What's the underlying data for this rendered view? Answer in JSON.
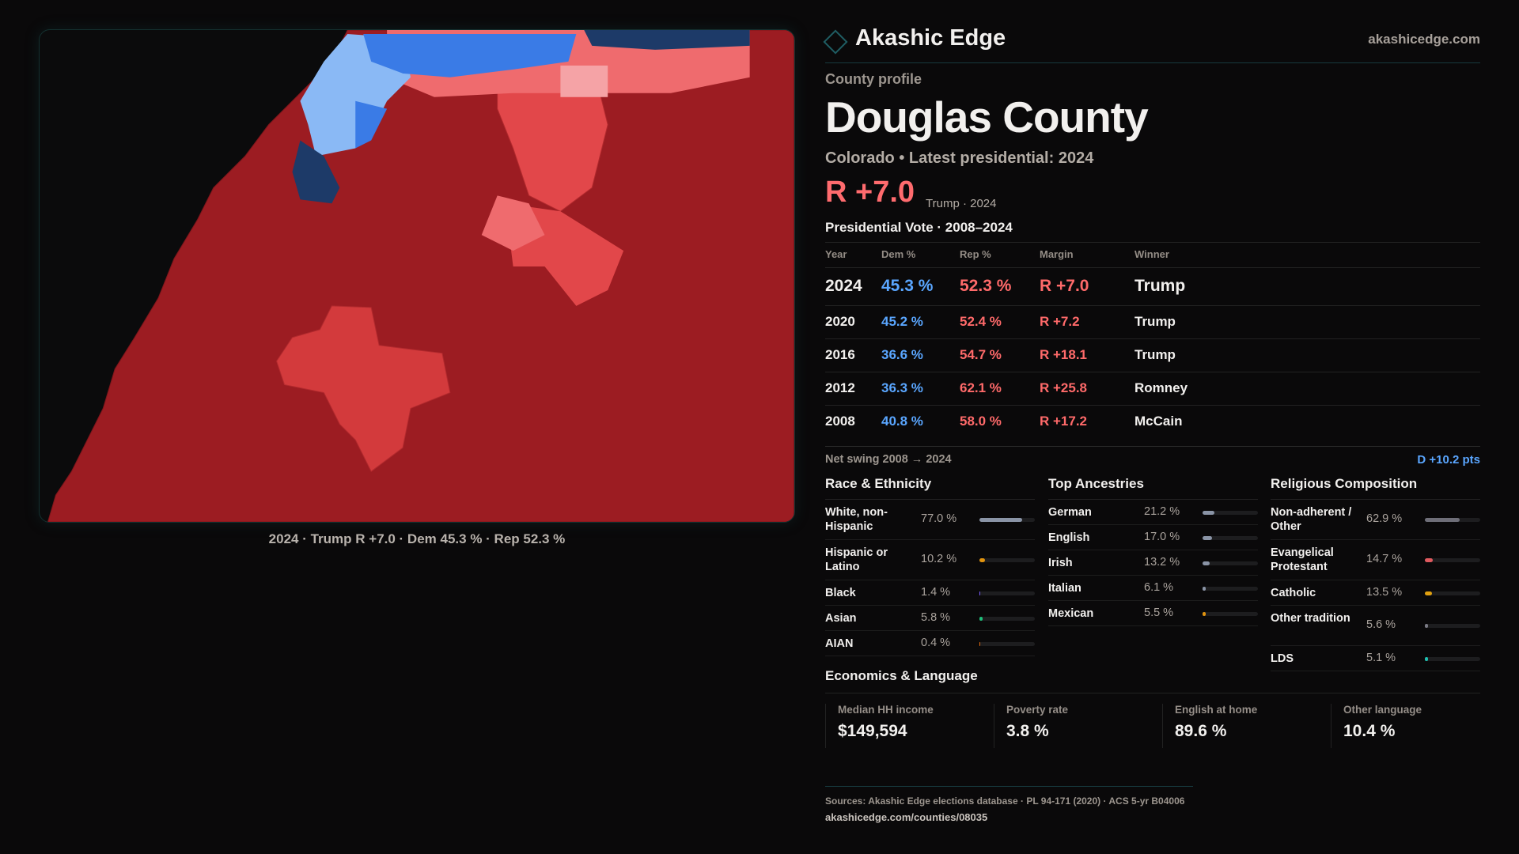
{
  "brand": {
    "name": "Akashic Edge",
    "site": "akashicedge.com"
  },
  "map": {
    "caption": "2024 · Trump R +7.0 · Dem 45.3 % · Rep 52.3 %",
    "colors": {
      "safe_r": "#9c1c22",
      "lean_r": "#d33a3c",
      "light_r": "#ef6b6e",
      "pink": "#f5a3a6",
      "light_d": "#8ab9f5",
      "d": "#3a7be6",
      "dark_d": "#1d3a68"
    }
  },
  "profile": {
    "kicker": "County profile",
    "title": "Douglas County",
    "subtitle": "Colorado • Latest presidential: 2024",
    "margin": "R +7.0",
    "margin_note": "Trump · 2024"
  },
  "votes": {
    "title": "Presidential Vote · 2008–2024",
    "headers": [
      "Year",
      "Dem %",
      "Rep %",
      "Margin",
      "Winner"
    ],
    "rows": [
      {
        "year": "2024",
        "dem": "45.3 %",
        "rep": "52.3 %",
        "margin": "R +7.0",
        "winner": "Trump"
      },
      {
        "year": "2020",
        "dem": "45.2 %",
        "rep": "52.4 %",
        "margin": "R +7.2",
        "winner": "Trump"
      },
      {
        "year": "2016",
        "dem": "36.6 %",
        "rep": "54.7 %",
        "margin": "R +18.1",
        "winner": "Trump"
      },
      {
        "year": "2012",
        "dem": "36.3 %",
        "rep": "62.1 %",
        "margin": "R +25.8",
        "winner": "Romney"
      },
      {
        "year": "2008",
        "dem": "40.8 %",
        "rep": "58.0 %",
        "margin": "R +17.2",
        "winner": "McCain"
      }
    ],
    "swing_label": "Net swing 2008 → 2024",
    "swing_value": "D +10.2 pts"
  },
  "race": {
    "title": "Race & Ethnicity",
    "items": [
      {
        "label": "White, non-Hispanic",
        "value": "77.0 %",
        "pct": 77.0,
        "color": "#8a94a6"
      },
      {
        "label": "Hispanic or Latino",
        "value": "10.2 %",
        "pct": 10.2,
        "color": "#e0930f"
      },
      {
        "label": "Black",
        "value": "1.4 %",
        "pct": 1.4,
        "color": "#7a5cff"
      },
      {
        "label": "Asian",
        "value": "5.8 %",
        "pct": 5.8,
        "color": "#1fbf7a"
      },
      {
        "label": "AIAN",
        "value": "0.4 %",
        "pct": 0.4,
        "color": "#e06a10"
      }
    ]
  },
  "ancestry": {
    "title": "Top Ancestries",
    "items": [
      {
        "label": "German",
        "value": "21.2 %",
        "pct": 21.2,
        "color": "#8a94a6"
      },
      {
        "label": "English",
        "value": "17.0 %",
        "pct": 17.0,
        "color": "#8a94a6"
      },
      {
        "label": "Irish",
        "value": "13.2 %",
        "pct": 13.2,
        "color": "#8a94a6"
      },
      {
        "label": "Italian",
        "value": "6.1 %",
        "pct": 6.1,
        "color": "#8a94a6"
      },
      {
        "label": "Mexican",
        "value": "5.5 %",
        "pct": 5.5,
        "color": "#e0930f"
      }
    ]
  },
  "religion": {
    "title": "Religious Composition",
    "items": [
      {
        "label": "Non-adherent / Other",
        "value": "62.9 %",
        "pct": 62.9,
        "color": "#6e6e78"
      },
      {
        "label": "Evangelical Protestant",
        "value": "14.7 %",
        "pct": 14.7,
        "color": "#e05a5f"
      },
      {
        "label": "Catholic",
        "value": "13.5 %",
        "pct": 13.5,
        "color": "#e0a010"
      },
      {
        "label": "Other tradition",
        "value": "5.6 %",
        "pct": 5.6,
        "color": "#7a7a84"
      },
      {
        "label": "LDS",
        "value": "5.1 %",
        "pct": 5.1,
        "color": "#1fbfb0"
      }
    ]
  },
  "econ": {
    "title": "Economics & Language",
    "stats": [
      {
        "label": "Median HH income",
        "value": "$149,594"
      },
      {
        "label": "Poverty rate",
        "value": "3.8 %"
      },
      {
        "label": "English at home",
        "value": "89.6 %"
      },
      {
        "label": "Other language",
        "value": "10.4 %"
      }
    ]
  },
  "footer": {
    "sources": "Sources: Akashic Edge elections database · PL 94-171 (2020) · ACS 5-yr B04006",
    "url": "akashicedge.com/counties/08035"
  }
}
